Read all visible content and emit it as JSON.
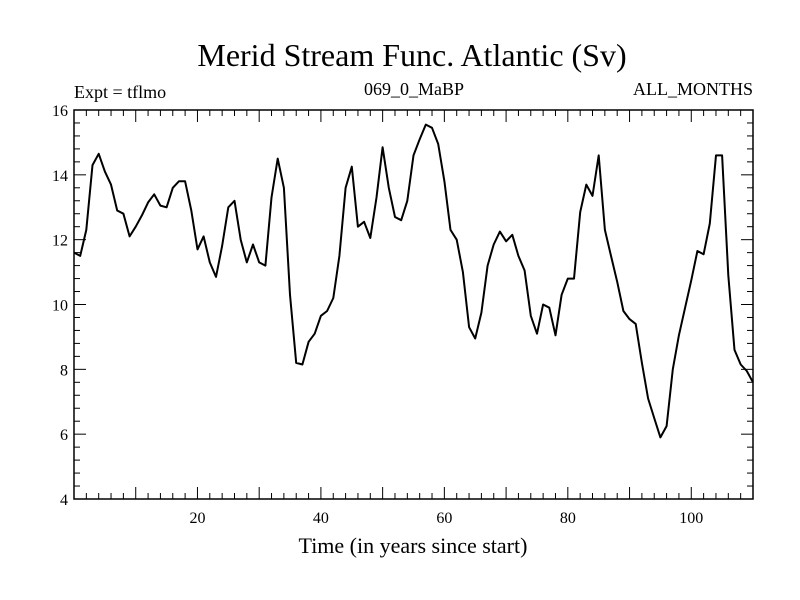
{
  "chart_data": {
    "type": "line",
    "title": "Merid Stream Func. Atlantic (Sv)",
    "subtitle_left": "Expt = tflmo",
    "subtitle_center": "069_0_MaBP",
    "subtitle_right": "ALL_MONTHS",
    "xlabel": "Time (in years since start)",
    "ylabel": "",
    "xlim": [
      0,
      110
    ],
    "ylim": [
      4,
      16
    ],
    "xticks": [
      20,
      40,
      60,
      80,
      100
    ],
    "yticks": [
      4,
      6,
      8,
      10,
      12,
      14,
      16
    ],
    "grid": false,
    "series": [
      {
        "name": "Merid Stream Func. Atlantic",
        "x": [
          0,
          1,
          2,
          3,
          4,
          5,
          6,
          7,
          8,
          9,
          10,
          11,
          12,
          13,
          14,
          15,
          16,
          17,
          18,
          19,
          20,
          21,
          22,
          23,
          24,
          25,
          26,
          27,
          28,
          29,
          30,
          31,
          32,
          33,
          34,
          35,
          36,
          37,
          38,
          39,
          40,
          41,
          42,
          43,
          44,
          45,
          46,
          47,
          48,
          49,
          50,
          51,
          52,
          53,
          54,
          55,
          56,
          57,
          58,
          59,
          60,
          61,
          62,
          63,
          64,
          65,
          66,
          67,
          68,
          69,
          70,
          71,
          72,
          73,
          74,
          75,
          76,
          77,
          78,
          79,
          80,
          81,
          82,
          83,
          84,
          85,
          86,
          87,
          88,
          89,
          90,
          91,
          92,
          93,
          94,
          95,
          96,
          97,
          98,
          99,
          100,
          101,
          102,
          103,
          104,
          105,
          106,
          107,
          108,
          109,
          110
        ],
        "values": [
          11.6,
          11.5,
          12.3,
          14.3,
          14.65,
          14.1,
          13.7,
          12.9,
          12.8,
          12.1,
          12.4,
          12.75,
          13.15,
          13.4,
          13.05,
          13.0,
          13.6,
          13.8,
          13.8,
          12.9,
          11.7,
          12.1,
          11.3,
          10.85,
          11.8,
          13.0,
          13.2,
          12.0,
          11.3,
          11.85,
          11.3,
          11.2,
          13.3,
          14.5,
          13.6,
          10.3,
          8.2,
          8.15,
          8.85,
          9.1,
          9.65,
          9.8,
          10.2,
          11.5,
          13.6,
          14.25,
          12.4,
          12.55,
          12.05,
          13.3,
          14.85,
          13.6,
          12.7,
          12.6,
          13.2,
          14.6,
          15.1,
          15.55,
          15.45,
          14.95,
          13.8,
          12.3,
          12.0,
          11.0,
          9.3,
          8.95,
          9.75,
          11.2,
          11.85,
          12.25,
          11.95,
          12.15,
          11.5,
          11.05,
          9.65,
          9.1,
          10.0,
          9.9,
          9.05,
          10.3,
          10.8,
          10.8,
          12.85,
          13.7,
          13.35,
          14.6,
          12.3,
          11.5,
          10.7,
          9.8,
          9.55,
          9.4,
          8.2,
          7.1,
          6.5,
          5.9,
          6.25,
          8.0,
          9.05,
          9.9,
          10.75,
          11.65,
          11.55,
          12.5,
          14.6,
          14.6,
          10.9,
          8.6,
          8.15,
          7.95,
          7.6
        ]
      }
    ]
  }
}
